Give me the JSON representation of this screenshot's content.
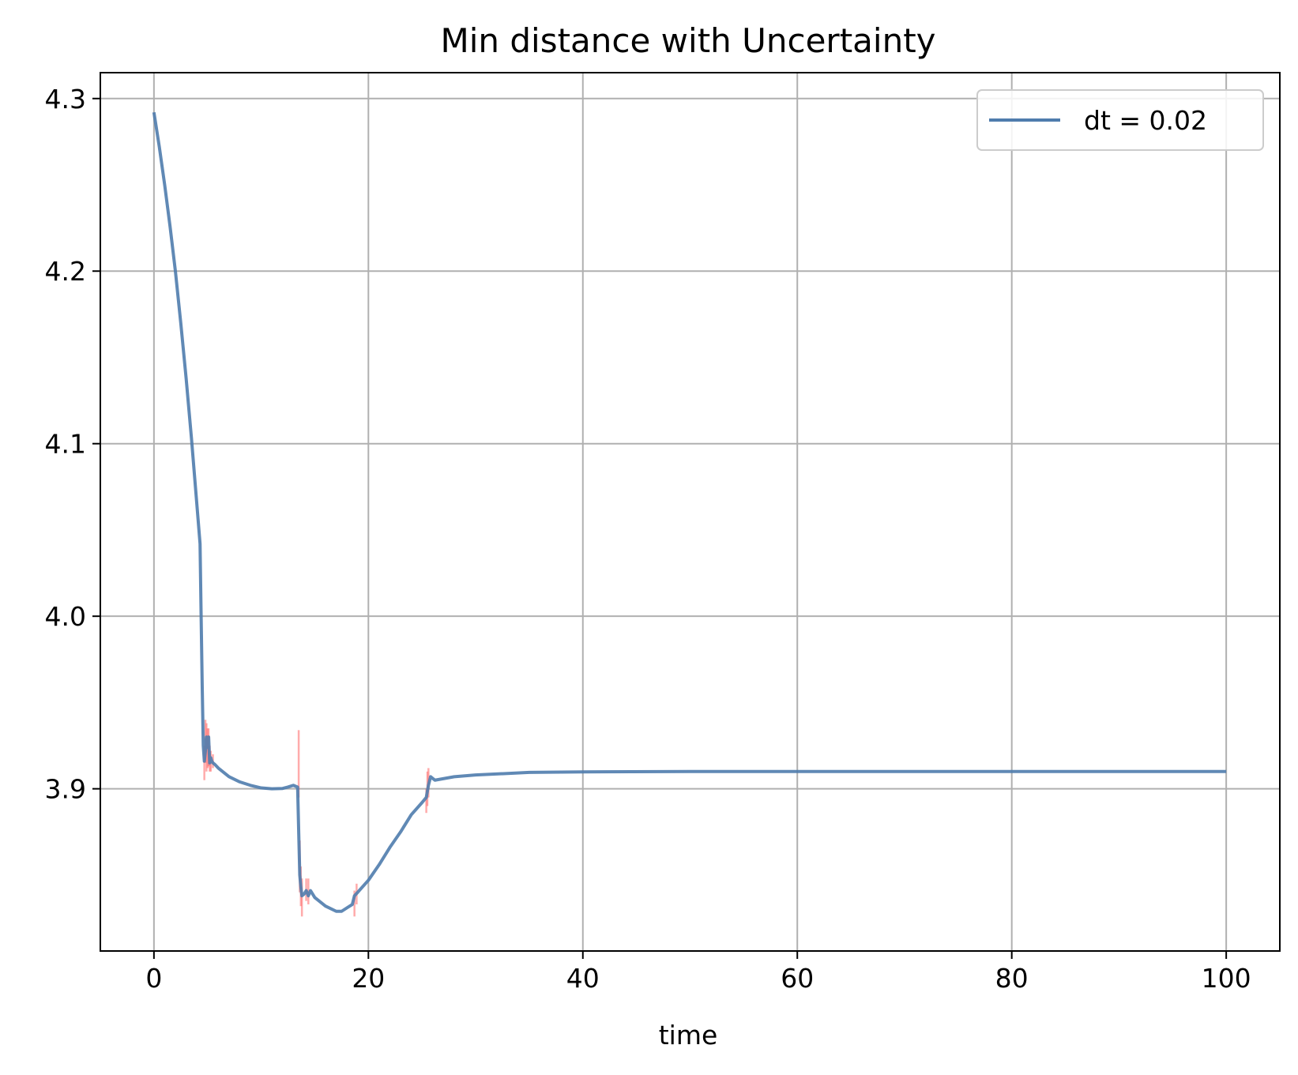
{
  "chart_data": {
    "type": "line",
    "title": "Min distance with Uncertainty",
    "xlabel": "time",
    "ylabel": "",
    "xlim": [
      -5,
      105
    ],
    "ylim": [
      3.806,
      4.315
    ],
    "xticks": [
      0,
      20,
      40,
      60,
      80,
      100
    ],
    "xtick_labels": [
      "0",
      "20",
      "40",
      "60",
      "80",
      "100"
    ],
    "yticks": [
      3.9,
      4.0,
      4.1,
      4.2,
      4.3
    ],
    "ytick_labels": [
      "3.9",
      "4.0",
      "4.1",
      "4.2",
      "4.3"
    ],
    "grid": true,
    "legend": {
      "placement": "top-right"
    },
    "colors": {
      "main": "#4f7cad",
      "band": "#ff6666",
      "grid": "#b0b0b0",
      "axes": "#000000"
    },
    "series": [
      {
        "name": "dt = 0.02",
        "x": [
          0,
          0.5,
          1,
          1.5,
          2,
          2.5,
          3,
          3.5,
          4,
          4.3,
          4.4,
          4.5,
          4.6,
          4.7,
          4.8,
          4.9,
          5.0,
          5.1,
          5.2,
          5.3,
          5.4,
          5.5,
          5.7,
          6,
          7,
          8,
          9,
          10,
          11,
          12,
          12.5,
          13,
          13.4,
          13.5,
          13.6,
          13.7,
          13.8,
          14.0,
          14.2,
          14.4,
          14.6,
          15,
          16,
          17,
          17.5,
          18,
          18.5,
          18.7,
          19,
          20,
          21,
          22,
          23,
          24,
          25,
          25.4,
          25.6,
          25.8,
          26.0,
          26.2,
          28,
          30,
          35,
          40,
          50,
          60,
          70,
          80,
          90,
          100
        ],
        "y": [
          4.292,
          4.272,
          4.25,
          4.226,
          4.2,
          4.17,
          4.138,
          4.103,
          4.065,
          4.042,
          4.0,
          3.96,
          3.925,
          3.916,
          3.922,
          3.93,
          3.924,
          3.93,
          3.915,
          3.918,
          3.916,
          3.915,
          3.914,
          3.912,
          3.907,
          3.904,
          3.902,
          3.9005,
          3.9,
          3.9002,
          3.901,
          3.902,
          3.901,
          3.875,
          3.85,
          3.843,
          3.838,
          3.839,
          3.841,
          3.838,
          3.841,
          3.837,
          3.832,
          3.829,
          3.829,
          3.831,
          3.833,
          3.838,
          3.84,
          3.847,
          3.856,
          3.866,
          3.875,
          3.885,
          3.892,
          3.895,
          3.902,
          3.907,
          3.906,
          3.905,
          3.907,
          3.908,
          3.9095,
          3.9098,
          3.91,
          3.91,
          3.91,
          3.91,
          3.91,
          3.91
        ]
      }
    ],
    "uncertainty": {
      "x": [
        4.7,
        4.8,
        4.9,
        5.0,
        5.1,
        5.2,
        5.3,
        5.5,
        13.5,
        13.6,
        13.7,
        13.8,
        14.2,
        14.4,
        18.7,
        18.9,
        25.4,
        25.5,
        25.6
      ],
      "y_low": [
        3.905,
        3.915,
        3.91,
        3.912,
        3.913,
        3.91,
        3.91,
        3.912,
        3.895,
        3.84,
        3.832,
        3.826,
        3.835,
        3.833,
        3.826,
        3.833,
        3.886,
        3.89,
        3.895
      ],
      "y_high": [
        3.925,
        3.94,
        3.938,
        3.935,
        3.935,
        3.925,
        3.922,
        3.92,
        3.934,
        3.87,
        3.855,
        3.848,
        3.848,
        3.848,
        3.841,
        3.845,
        3.9,
        3.91,
        3.912
      ]
    }
  }
}
